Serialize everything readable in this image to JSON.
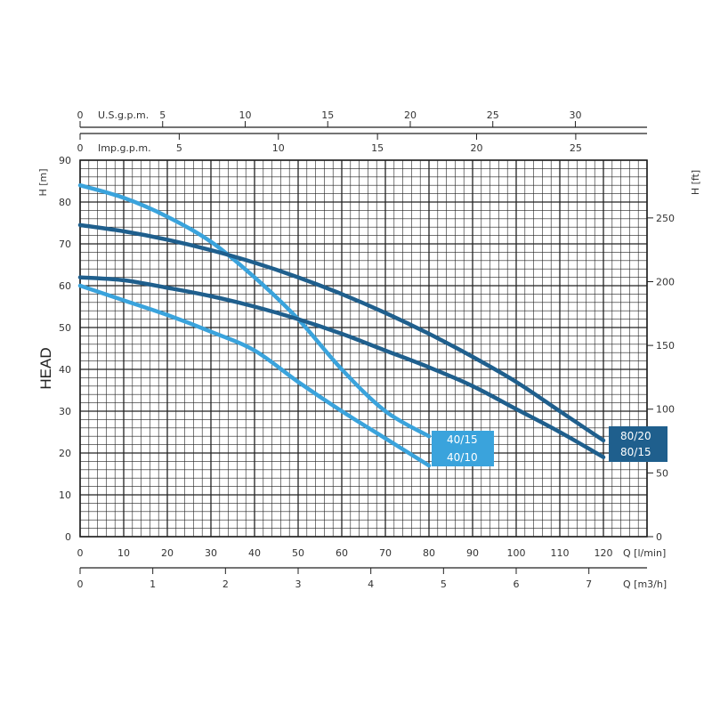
{
  "colors": {
    "light_blue": "#3aa3dc",
    "dark_blue": "#1f5f8d",
    "grid": "#222222",
    "text": "#333333"
  },
  "axes": {
    "head_side_label": "HEAD",
    "left_unit": "H [m]",
    "right_unit": "H [ft]",
    "bottom_lmin_unit": "Q [l/min]",
    "bottom_m3h_unit": "Q [m3/h]",
    "top_usgpm_name": "U.S.g.p.m.",
    "top_impgpm_name": "Imp.g.p.m.",
    "left_ticks": [
      "0",
      "10",
      "20",
      "30",
      "40",
      "50",
      "60",
      "70",
      "80",
      "90"
    ],
    "right_ticks": [
      "0",
      "50",
      "100",
      "150",
      "200",
      "250"
    ],
    "lmin_ticks": [
      "0",
      "10",
      "20",
      "30",
      "40",
      "50",
      "60",
      "70",
      "80",
      "90",
      "100",
      "110",
      "120"
    ],
    "m3h_ticks": [
      "0",
      "1",
      "2",
      "3",
      "4",
      "5",
      "6",
      "7"
    ],
    "usgpm_ticks": [
      "0",
      "5",
      "10",
      "15",
      "20",
      "25",
      "30"
    ],
    "impgpm_ticks": [
      "0",
      "5",
      "10",
      "15",
      "20",
      "25"
    ]
  },
  "chart_data": {
    "type": "line",
    "x_unit": "l/min",
    "y_unit": "m",
    "xlim": [
      0,
      130
    ],
    "ylim": [
      0,
      90
    ],
    "grid": true,
    "series": [
      {
        "name": "40/15",
        "color": "light_blue",
        "x": [
          0,
          10,
          20,
          30,
          40,
          50,
          60,
          70,
          80
        ],
        "y": [
          84,
          81,
          76.5,
          70.5,
          62,
          52,
          40,
          30,
          24
        ]
      },
      {
        "name": "40/10",
        "color": "light_blue",
        "x": [
          0,
          10,
          20,
          30,
          40,
          50,
          60,
          70,
          80
        ],
        "y": [
          60,
          56.5,
          53,
          49,
          44.5,
          37,
          30,
          23.5,
          17
        ]
      },
      {
        "name": "80/20",
        "color": "dark_blue",
        "x": [
          0,
          10,
          20,
          30,
          40,
          50,
          60,
          70,
          80,
          90,
          100,
          110,
          120
        ],
        "y": [
          74.5,
          73,
          71,
          68.5,
          65.5,
          62,
          58,
          53.5,
          48.5,
          43,
          37,
          30,
          23
        ]
      },
      {
        "name": "80/15",
        "color": "dark_blue",
        "x": [
          0,
          10,
          20,
          30,
          40,
          50,
          60,
          70,
          80,
          90,
          100,
          110,
          120
        ],
        "y": [
          62,
          61.3,
          59.5,
          57.5,
          55,
          52,
          48.5,
          44.5,
          40.5,
          36,
          30.5,
          25,
          19
        ]
      }
    ]
  }
}
